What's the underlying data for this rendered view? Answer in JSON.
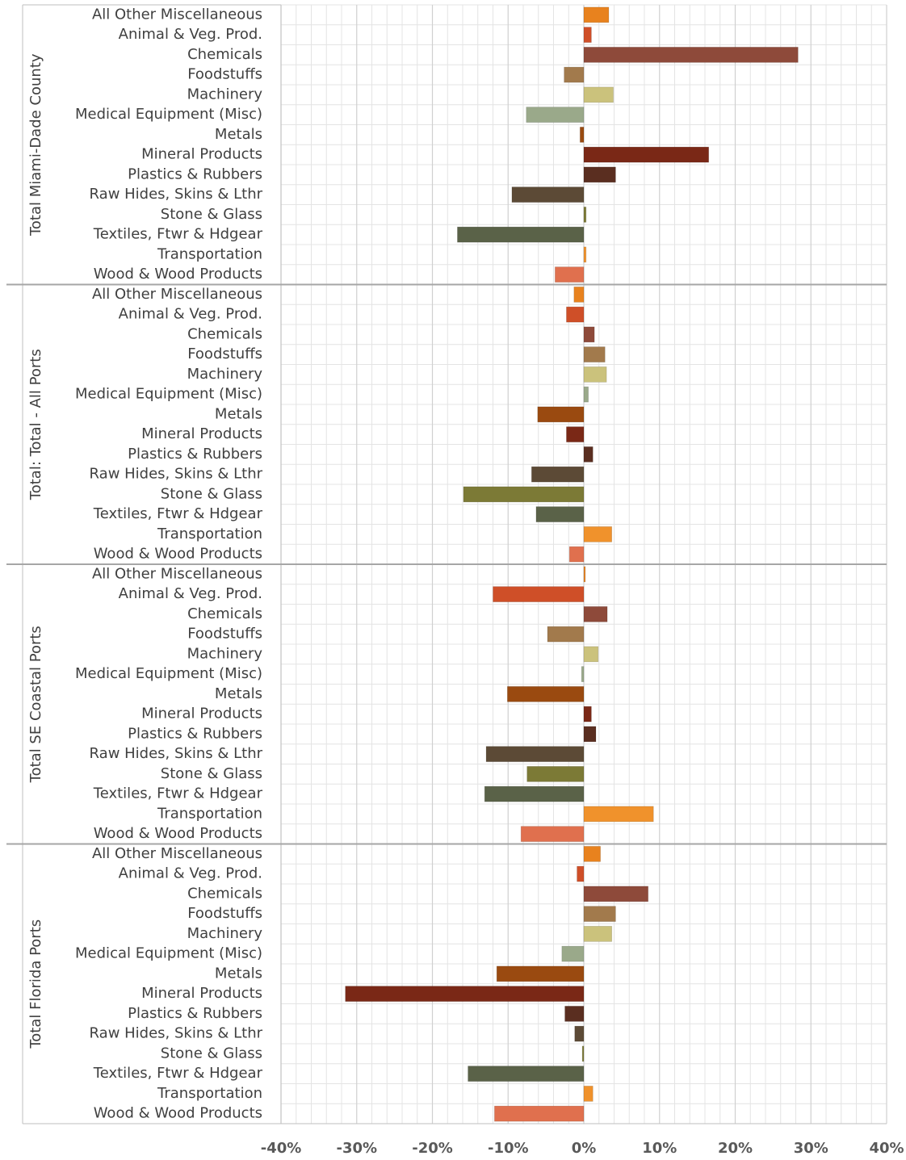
{
  "chart_data": {
    "type": "bar",
    "categories": [
      "All Other Miscellaneous",
      "Animal & Veg. Prod.",
      "Chemicals",
      "Foodstuffs",
      "Machinery",
      "Medical Equipment (Misc)",
      "Metals",
      "Mineral Products",
      "Plastics & Rubbers",
      "Raw Hides, Skins & Lthr",
      "Stone & Glass",
      "Textiles, Ftwr & Hdgear",
      "Transportation",
      "Wood & Wood Products"
    ],
    "colors": [
      "#e8821e",
      "#cf4f28",
      "#8e4a3a",
      "#a27a4c",
      "#cbc27c",
      "#9aa98a",
      "#9a4a10",
      "#7a2816",
      "#5a2e20",
      "#5c4a36",
      "#7c7a36",
      "#5a6248",
      "#f0922c",
      "#e0704e"
    ],
    "groups": [
      {
        "name": "Total Miami-Dade County",
        "values": [
          3.3,
          1.0,
          28.3,
          -2.6,
          3.9,
          -7.6,
          -0.5,
          16.5,
          4.2,
          -9.5,
          0.3,
          -16.7,
          0.3,
          -3.8
        ]
      },
      {
        "name": "Total: Total - All Ports",
        "values": [
          -1.3,
          -2.3,
          1.4,
          2.8,
          3.0,
          0.6,
          -6.1,
          -2.3,
          1.2,
          -6.9,
          -15.9,
          -6.3,
          3.7,
          -1.9
        ]
      },
      {
        "name": "Total SE Coastal Ports",
        "values": [
          0.2,
          -12.0,
          3.1,
          -4.8,
          1.9,
          -0.3,
          -10.1,
          1.0,
          1.6,
          -12.9,
          -7.5,
          -13.1,
          9.2,
          -8.3
        ]
      },
      {
        "name": "Total Florida Ports",
        "values": [
          2.2,
          -0.9,
          8.5,
          4.2,
          3.7,
          -2.9,
          -11.5,
          -31.5,
          -2.5,
          -1.2,
          -0.2,
          -15.3,
          1.2,
          -11.8
        ]
      }
    ],
    "xlim": [
      -40,
      40
    ],
    "xticks": [
      {
        "value": -40,
        "label": "-40%"
      },
      {
        "value": -30,
        "label": "-30%"
      },
      {
        "value": -20,
        "label": "-20%"
      },
      {
        "value": -10,
        "label": "-10%"
      },
      {
        "value": 0,
        "label": "0%"
      },
      {
        "value": 10,
        "label": "10%"
      },
      {
        "value": 20,
        "label": "20%"
      },
      {
        "value": 30,
        "label": "30%"
      },
      {
        "value": 40,
        "label": "40%"
      }
    ],
    "minor_xticks": [
      -38,
      -36,
      -34,
      -32,
      -28,
      -26,
      -24,
      -22,
      -18,
      -16,
      -14,
      -12,
      -8,
      -6,
      -4,
      -2,
      2,
      4,
      6,
      8,
      12,
      14,
      16,
      18,
      22,
      24,
      26,
      28,
      32,
      34,
      36,
      38
    ],
    "grid": true
  }
}
